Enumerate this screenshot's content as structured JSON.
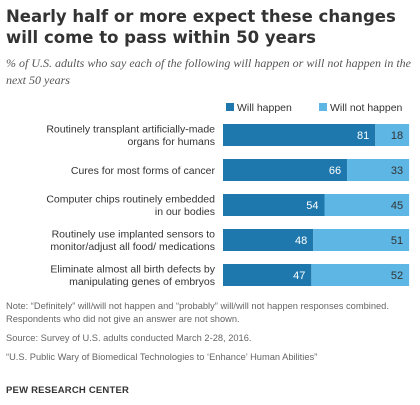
{
  "header": {
    "title": "Nearly half or more expect these changes will come to pass within 50 years",
    "subtitle": "% of U.S. adults who say each of the following will happen or will not happen in the next 50 years"
  },
  "colors": {
    "will_happen": "#1e78ad",
    "will_not_happen": "#5db6e3"
  },
  "chart_data": {
    "type": "bar",
    "orientation": "horizontal",
    "stacked": true,
    "legend_position": "top-right",
    "categories": [
      [
        "Routinely transplant artificially-made",
        "organs for humans"
      ],
      [
        "Cures for most forms of cancer"
      ],
      [
        "Computer chips routinely embedded",
        "in our bodies"
      ],
      [
        "Routinely use implanted sensors to",
        "monitor/adjust all food/ medications"
      ],
      [
        "Eliminate almost all birth defects by",
        "manipulating genes of embryos"
      ]
    ],
    "series": [
      {
        "name": "Will happen",
        "values": [
          81,
          66,
          54,
          48,
          47
        ]
      },
      {
        "name": "Will not happen",
        "values": [
          18,
          33,
          45,
          51,
          52
        ]
      }
    ],
    "xlim": [
      0,
      100
    ],
    "grid": false
  },
  "notes": {
    "note": "Note: “Definitely” will/will not happen and “probably” will/will not happen responses combined. Respondents who did not give an answer are not shown.",
    "source": "Source: Survey of U.S. adults conducted March 2-28, 2016.",
    "report": "“U.S. Public Wary of Biomedical Technologies to ‘Enhance’ Human Abilities”",
    "org": "PEW RESEARCH CENTER"
  }
}
